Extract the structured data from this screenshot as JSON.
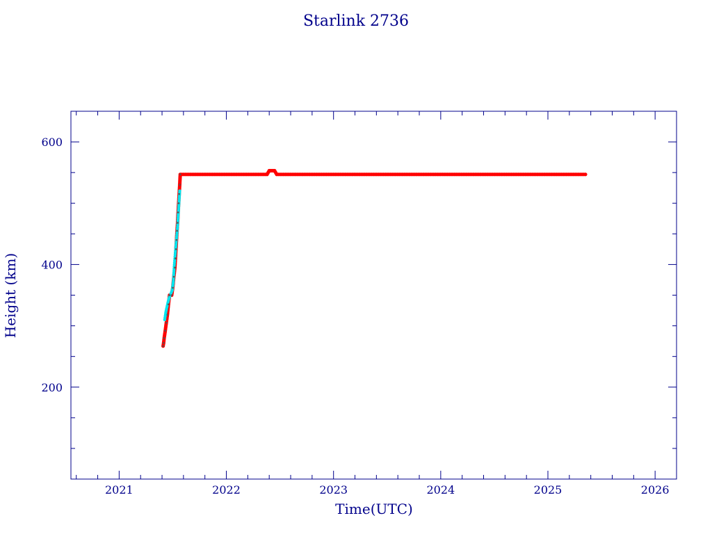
{
  "chart_data": {
    "type": "scatter",
    "title": "Starlink 2736",
    "xlabel": "Time(UTC)",
    "ylabel": "Height (km)",
    "xlim": [
      2020.55,
      2026.2
    ],
    "ylim": [
      50,
      650
    ],
    "x_ticks": [
      "2021",
      "2022",
      "2023",
      "2024",
      "2025",
      "2026"
    ],
    "y_ticks": [
      "200",
      "400",
      "600"
    ],
    "grid": false,
    "colors": {
      "axis": "#00008b",
      "primary": "#ff0000",
      "secondary": "#00e5ee",
      "overlay": "#555555"
    },
    "series": [
      {
        "color": "#ff0000",
        "points": [
          [
            2021.41,
            267
          ],
          [
            2021.415,
            272
          ],
          [
            2021.42,
            280
          ],
          [
            2021.43,
            292
          ],
          [
            2021.44,
            305
          ],
          [
            2021.45,
            318
          ],
          [
            2021.46,
            335
          ],
          [
            2021.47,
            350
          ],
          [
            2021.49,
            350
          ],
          [
            2021.5,
            362
          ],
          [
            2021.51,
            380
          ],
          [
            2021.52,
            395
          ],
          [
            2021.525,
            410
          ],
          [
            2021.53,
            425
          ],
          [
            2021.535,
            440
          ],
          [
            2021.54,
            455
          ],
          [
            2021.545,
            468
          ],
          [
            2021.55,
            485
          ],
          [
            2021.555,
            500
          ],
          [
            2021.56,
            515
          ],
          [
            2021.565,
            530
          ],
          [
            2021.57,
            547
          ],
          [
            2022.0,
            547
          ],
          [
            2022.38,
            547
          ],
          [
            2022.4,
            553
          ],
          [
            2022.45,
            553
          ],
          [
            2022.47,
            547
          ],
          [
            2023.0,
            547
          ],
          [
            2024.0,
            547
          ],
          [
            2025.0,
            547
          ],
          [
            2025.35,
            547
          ]
        ]
      },
      {
        "color": "#00e5ee",
        "points": [
          [
            2021.425,
            310
          ],
          [
            2021.435,
            322
          ],
          [
            2021.445,
            330
          ],
          [
            2021.455,
            338
          ],
          [
            2021.465,
            345
          ],
          [
            2021.495,
            358
          ],
          [
            2021.505,
            372
          ],
          [
            2021.515,
            400
          ],
          [
            2021.53,
            432
          ],
          [
            2021.545,
            462
          ],
          [
            2021.55,
            478
          ],
          [
            2021.555,
            492
          ],
          [
            2021.565,
            520
          ]
        ]
      }
    ]
  }
}
